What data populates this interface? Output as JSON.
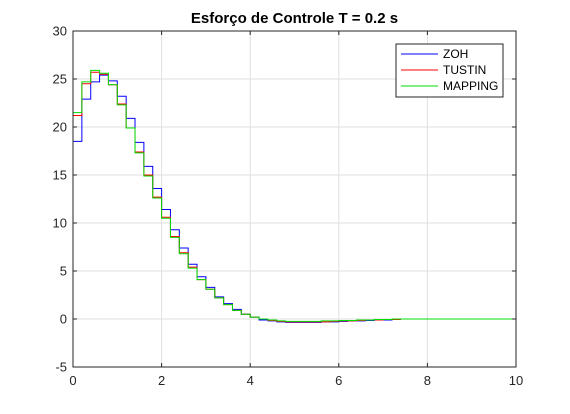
{
  "chart_data": {
    "type": "line",
    "step": true,
    "title": "Esforço de Controle T = 0.2 s",
    "xlabel": "",
    "ylabel": "",
    "xlim": [
      0,
      10
    ],
    "ylim": [
      -5,
      30
    ],
    "xticks": [
      0,
      2,
      4,
      6,
      8,
      10
    ],
    "yticks": [
      -5,
      0,
      5,
      10,
      15,
      20,
      25,
      30
    ],
    "grid": true,
    "legend_position": "top-right",
    "series": [
      {
        "name": "ZOH",
        "color": "#0000ff",
        "x": [
          0,
          0.2,
          0.4,
          0.6,
          0.8,
          1.0,
          1.2,
          1.4,
          1.6,
          1.8,
          2.0,
          2.2,
          2.4,
          2.6,
          2.8,
          3.0,
          3.2,
          3.4,
          3.6,
          3.8,
          4.0,
          4.2,
          4.4,
          4.6,
          4.8,
          5.0,
          5.2,
          5.4,
          5.6,
          5.8,
          6.0,
          6.2,
          6.4,
          6.6,
          6.8,
          7.0,
          7.2
        ],
        "values": [
          18.5,
          22.9,
          24.7,
          25.4,
          24.8,
          23.2,
          20.9,
          18.4,
          15.9,
          13.6,
          11.4,
          9.3,
          7.4,
          5.7,
          4.4,
          3.3,
          2.3,
          1.6,
          1.0,
          0.5,
          0.2,
          -0.1,
          -0.2,
          -0.3,
          -0.35,
          -0.35,
          -0.35,
          -0.35,
          -0.3,
          -0.3,
          -0.25,
          -0.2,
          -0.2,
          -0.15,
          -0.1,
          -0.1,
          -0.05
        ]
      },
      {
        "name": "TUSTIN",
        "color": "#ff0000",
        "x": [
          0,
          0.2,
          0.4,
          0.6,
          0.8,
          1.0,
          1.2,
          1.4,
          1.6,
          1.8,
          2.0,
          2.2,
          2.4,
          2.6,
          2.8,
          3.0,
          3.2,
          3.4,
          3.6,
          3.8,
          4.0,
          4.2,
          4.4,
          4.6,
          4.8,
          5.0,
          5.2,
          5.4,
          5.6,
          5.8,
          6.0,
          6.2,
          6.4,
          6.6,
          6.8,
          7.0,
          7.2
        ],
        "values": [
          21.2,
          24.5,
          25.7,
          25.5,
          24.4,
          22.4,
          19.9,
          17.4,
          15.0,
          12.7,
          10.6,
          8.6,
          6.9,
          5.4,
          4.1,
          3.1,
          2.2,
          1.5,
          0.9,
          0.5,
          0.2,
          0.0,
          -0.15,
          -0.25,
          -0.3,
          -0.3,
          -0.3,
          -0.3,
          -0.3,
          -0.25,
          -0.2,
          -0.2,
          -0.15,
          -0.1,
          -0.1,
          -0.05,
          -0.05
        ]
      },
      {
        "name": "MAPPING",
        "color": "#00dd00",
        "x": [
          0,
          0.2,
          0.4,
          0.6,
          0.8,
          1.0,
          1.2,
          1.4,
          1.6,
          1.8,
          2.0,
          2.2,
          2.4,
          2.6,
          2.8,
          3.0,
          3.2,
          3.4,
          3.6,
          3.8,
          4.0,
          4.2,
          4.4,
          4.6,
          4.8,
          5.0,
          5.2,
          5.4,
          5.6,
          5.8,
          6.0,
          6.2,
          6.4,
          6.6,
          6.8,
          7.0,
          7.2,
          7.6,
          8.0,
          8.4,
          8.8,
          10.0
        ],
        "values": [
          21.5,
          24.7,
          25.9,
          25.6,
          24.4,
          22.3,
          19.9,
          17.3,
          14.9,
          12.6,
          10.5,
          8.5,
          6.8,
          5.3,
          4.1,
          3.1,
          2.2,
          1.5,
          0.9,
          0.5,
          0.2,
          0.0,
          -0.1,
          -0.2,
          -0.25,
          -0.25,
          -0.25,
          -0.25,
          -0.2,
          -0.2,
          -0.15,
          -0.15,
          -0.1,
          -0.1,
          -0.05,
          -0.05,
          0.0,
          0.0,
          0.0,
          0.0,
          0.0,
          0.0
        ]
      }
    ]
  }
}
